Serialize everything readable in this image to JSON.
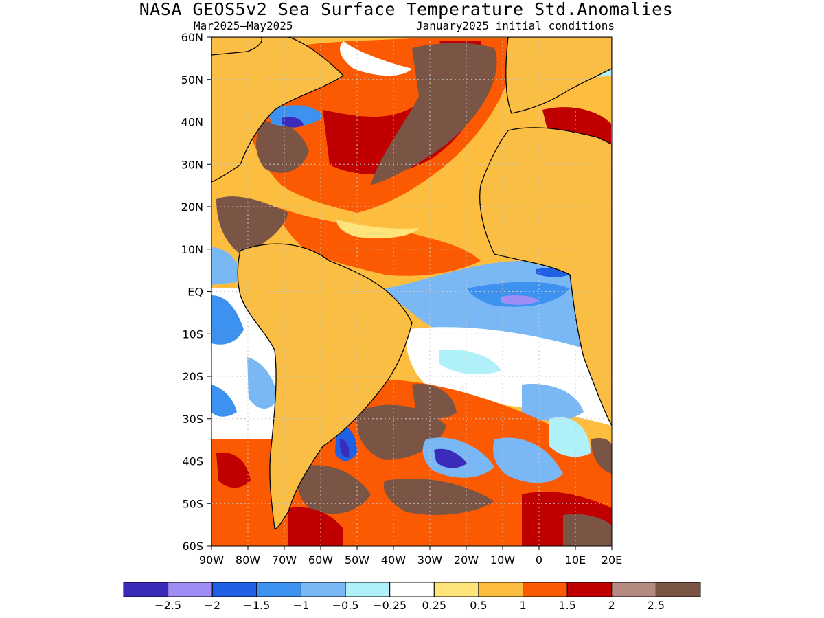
{
  "title": "NASA_GEOS5v2 Sea Surface Temperature Std.Anomalies",
  "subtitle_left": "Mar2025–May2025",
  "subtitle_right": "January2025 initial conditions",
  "lat_labels": [
    "60N",
    "50N",
    "40N",
    "30N",
    "20N",
    "10N",
    "EQ",
    "10S",
    "20S",
    "30S",
    "40S",
    "50S",
    "60S"
  ],
  "lon_labels": [
    "90W",
    "80W",
    "70W",
    "60W",
    "50W",
    "40W",
    "30W",
    "20W",
    "10W",
    "0",
    "10E",
    "20E"
  ],
  "colorbar": {
    "colors": [
      "#3a2bbb",
      "#9f8cf5",
      "#1f60e5",
      "#3e92ef",
      "#7ab8f5",
      "#b0f0f8",
      "#ffffff",
      "#fee47b",
      "#fdbe3f",
      "#fb5a02",
      "#c00000",
      "#b48a80",
      "#7a5546"
    ],
    "labels": [
      "−2.5",
      "−2",
      "−1.5",
      "−1",
      "−0.5",
      "−0.25",
      "0.25",
      "0.5",
      "1",
      "1.5",
      "2",
      "2.5"
    ]
  },
  "map_colors": {
    "land": "#fbbe45",
    "ocean_base": "#fdbe3f",
    "coast": "#000000",
    "grid": "#c8c8c8"
  }
}
